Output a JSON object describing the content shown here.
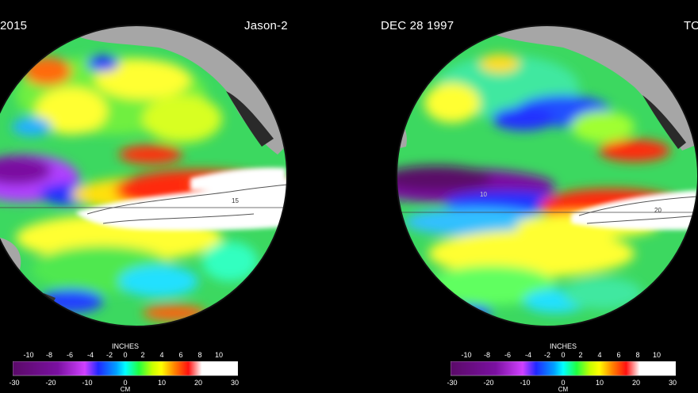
{
  "panels": [
    {
      "date": "2015",
      "satellite": "Jason-2",
      "legend": {
        "top_unit": "INCHES",
        "bottom_unit": "CM",
        "inch_ticks": [
          "-10",
          "-8",
          "-6",
          "-4",
          "-2",
          "0",
          "2",
          "4",
          "6",
          "8",
          "10"
        ],
        "cm_ticks": [
          "-30",
          "-20",
          "-10",
          "0",
          "10",
          "20",
          "30"
        ]
      }
    },
    {
      "date": "DEC 28  1997",
      "satellite": "TO",
      "legend": {
        "top_unit": "INCHES",
        "bottom_unit": "CM",
        "inch_ticks": [
          "-10",
          "-8",
          "-6",
          "-4",
          "-2",
          "0",
          "2",
          "4",
          "6",
          "8",
          "10"
        ],
        "cm_ticks": [
          "-30",
          "-20",
          "-10",
          "0",
          "10",
          "20",
          "30"
        ]
      }
    }
  ],
  "contour_labels": [
    "15",
    "20",
    "10"
  ],
  "colors": {
    "land": "#a6a6a6",
    "scale": [
      "#5a0a68",
      "#8a10b0",
      "#c040ff",
      "#2028ff",
      "#00a0ff",
      "#00ffff",
      "#20ff40",
      "#c8ff00",
      "#ffff00",
      "#ff8000",
      "#ff1010",
      "#ffffff"
    ]
  }
}
